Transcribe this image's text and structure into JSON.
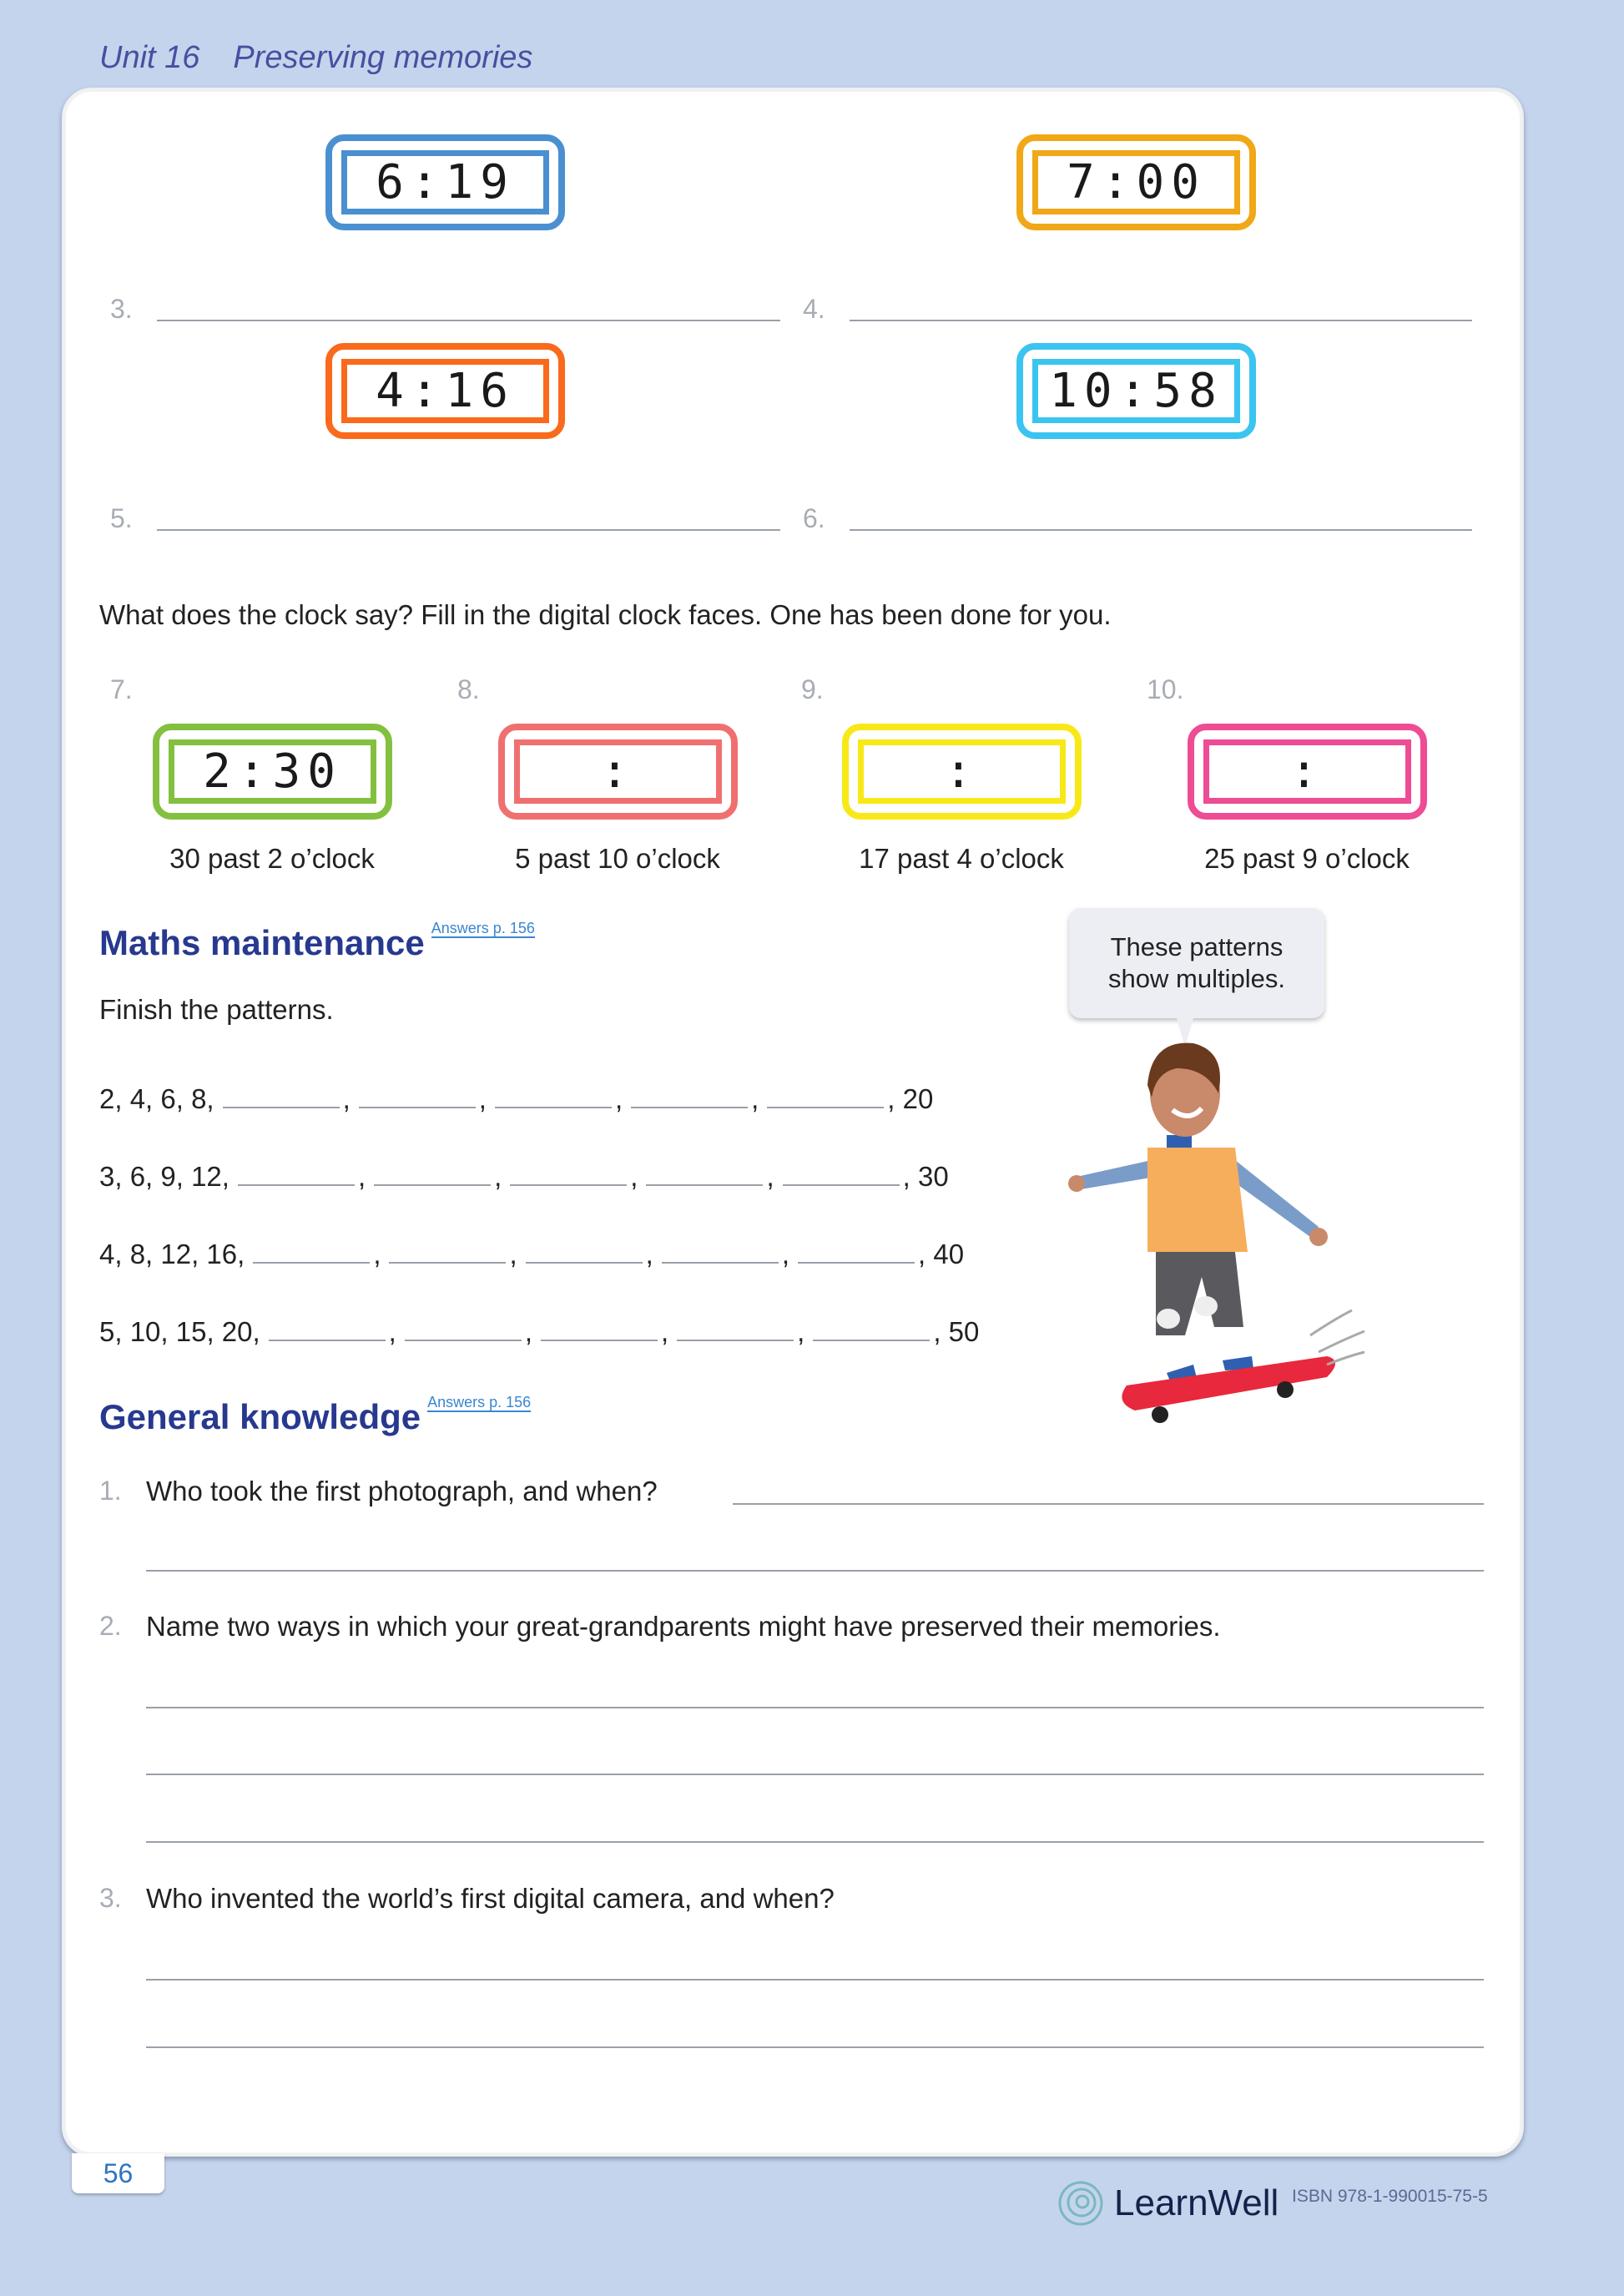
{
  "header": {
    "unit": "Unit 16",
    "title": "Preserving memories"
  },
  "colors": {
    "blue": "#4a90d0",
    "amber": "#f0a818",
    "orange": "#fa6a1c",
    "cyan": "#3cc4f0",
    "green": "#84c040",
    "salmon": "#f07070",
    "yellow": "#f8e818",
    "pink": "#ee4c94",
    "heading": "#27398f",
    "background": "#c4d4ec"
  },
  "clocks_top": [
    {
      "time": "6:19"
    },
    {
      "time": "7:00"
    },
    {
      "time": "4:16"
    },
    {
      "time": "10:58"
    }
  ],
  "answer_numbers": [
    "3.",
    "4.",
    "5.",
    "6."
  ],
  "instruction": "What does the clock say? Fill in the digital clock faces. One has been done for you.",
  "fill_clocks": [
    {
      "number": "7.",
      "display": "2:30",
      "caption": "30 past 2 o’clock"
    },
    {
      "number": "8.",
      "display": ":",
      "caption": "5 past 10 o’clock"
    },
    {
      "number": "9.",
      "display": ":",
      "caption": "17 past 4 o’clock"
    },
    {
      "number": "10.",
      "display": ":",
      "caption": "25 past 9 o’clock"
    }
  ],
  "maths": {
    "heading": "Maths maintenance",
    "answers": "Answers p. 156",
    "instruction": "Finish the patterns.",
    "patterns": [
      {
        "start": "2, 4, 6, 8,",
        "end": ", 20"
      },
      {
        "start": "3, 6, 9, 12,",
        "end": ", 30"
      },
      {
        "start": "4, 8, 12, 16,",
        "end": ", 40"
      },
      {
        "start": "5, 10, 15, 20,",
        "end": ", 50"
      }
    ],
    "bubble": "These patterns show multiples."
  },
  "general": {
    "heading": "General knowledge",
    "answers": "Answers p. 156",
    "questions": [
      {
        "number": "1.",
        "text": "Who took the first photograph, and when?"
      },
      {
        "number": "2.",
        "text": "Name two ways in which your great-grandparents might have preserved their memories."
      },
      {
        "number": "3.",
        "text": "Who invented the world’s first digital camera, and when?"
      }
    ]
  },
  "footer": {
    "page": "56",
    "brand": "LearnWell",
    "isbn": "ISBN 978-1-990015-75-5"
  }
}
